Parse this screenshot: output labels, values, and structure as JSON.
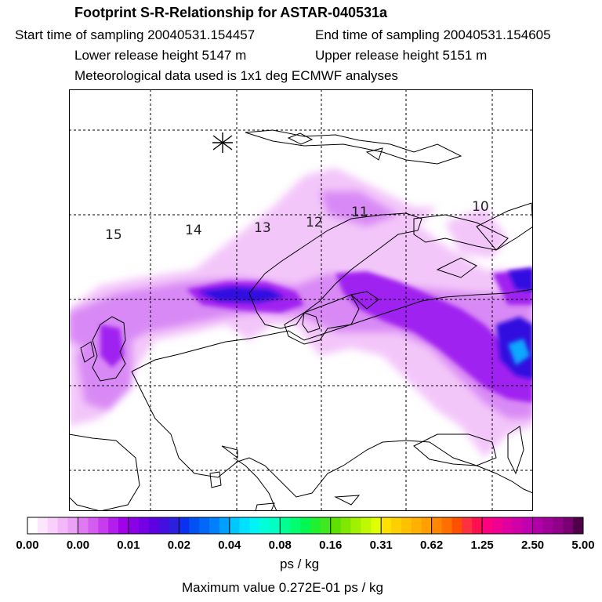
{
  "header": {
    "title": "Footprint S-R-Relationship for ASTAR-040531a",
    "start_time": "Start time of sampling 20040531.154457",
    "end_time": "End time of sampling 20040531.154605",
    "lower_height": "Lower release height 5147 m",
    "upper_height": "Upper release height 5151 m",
    "met_data": "Meteorological data used is 1x1 deg ECMWF analyses"
  },
  "map": {
    "release_marker": "asterisk-icon",
    "day_labels": [
      "15",
      "14",
      "13",
      "12",
      "11",
      "10"
    ],
    "colors": {
      "coastline": "#000000",
      "gridline": "#000000",
      "plume_light": "#f4c8f8",
      "plume_mid": "#c040f0",
      "plume_strong": "#8000e0",
      "plume_max": "#2020e0",
      "plume_peak": "#00a0ff"
    }
  },
  "colorbar": {
    "labels": [
      "0.00",
      "0.00",
      "0.01",
      "0.02",
      "0.04",
      "0.08",
      "0.16",
      "0.31",
      "0.62",
      "1.25",
      "2.50",
      "5.00"
    ],
    "units": "ps / kg",
    "max_value": "Maximum value  0.272E-01 ps / kg"
  }
}
